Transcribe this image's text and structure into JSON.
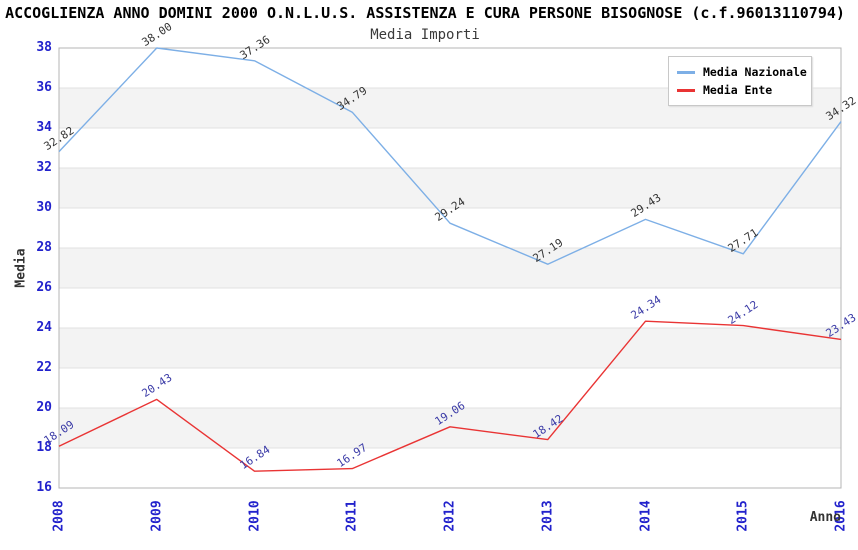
{
  "chart_data": {
    "type": "line",
    "title": "ACCOGLIENZA ANNO DOMINI 2000 O.N.L.U.S. ASSISTENZA E CURA PERSONE BISOGNOSE (c.f.96013110794)",
    "subtitle": "Media Importi",
    "xlabel": "Anno",
    "ylabel": "Media",
    "categories": [
      "2008",
      "2009",
      "2010",
      "2011",
      "2012",
      "2013",
      "2014",
      "2015",
      "2016"
    ],
    "series": [
      {
        "name": "Media Nazionale",
        "color": "#7dafe6",
        "label_color": "#333333",
        "values": [
          32.82,
          38.0,
          37.36,
          34.79,
          29.24,
          27.19,
          29.43,
          27.71,
          34.32
        ]
      },
      {
        "name": "Media Ente",
        "color": "#e93434",
        "label_color": "#3a3aa6",
        "values": [
          18.09,
          20.43,
          16.84,
          16.97,
          19.06,
          18.42,
          24.34,
          24.12,
          23.43
        ]
      }
    ],
    "ylim": [
      16,
      38
    ],
    "ytick_step": 2,
    "grid": true,
    "legend_position": "top-right",
    "band_color": "#f3f3f3",
    "gridline_color": "#e2e2e2",
    "border_color": "#b4b4b4",
    "tick_color": "#2222cc"
  }
}
